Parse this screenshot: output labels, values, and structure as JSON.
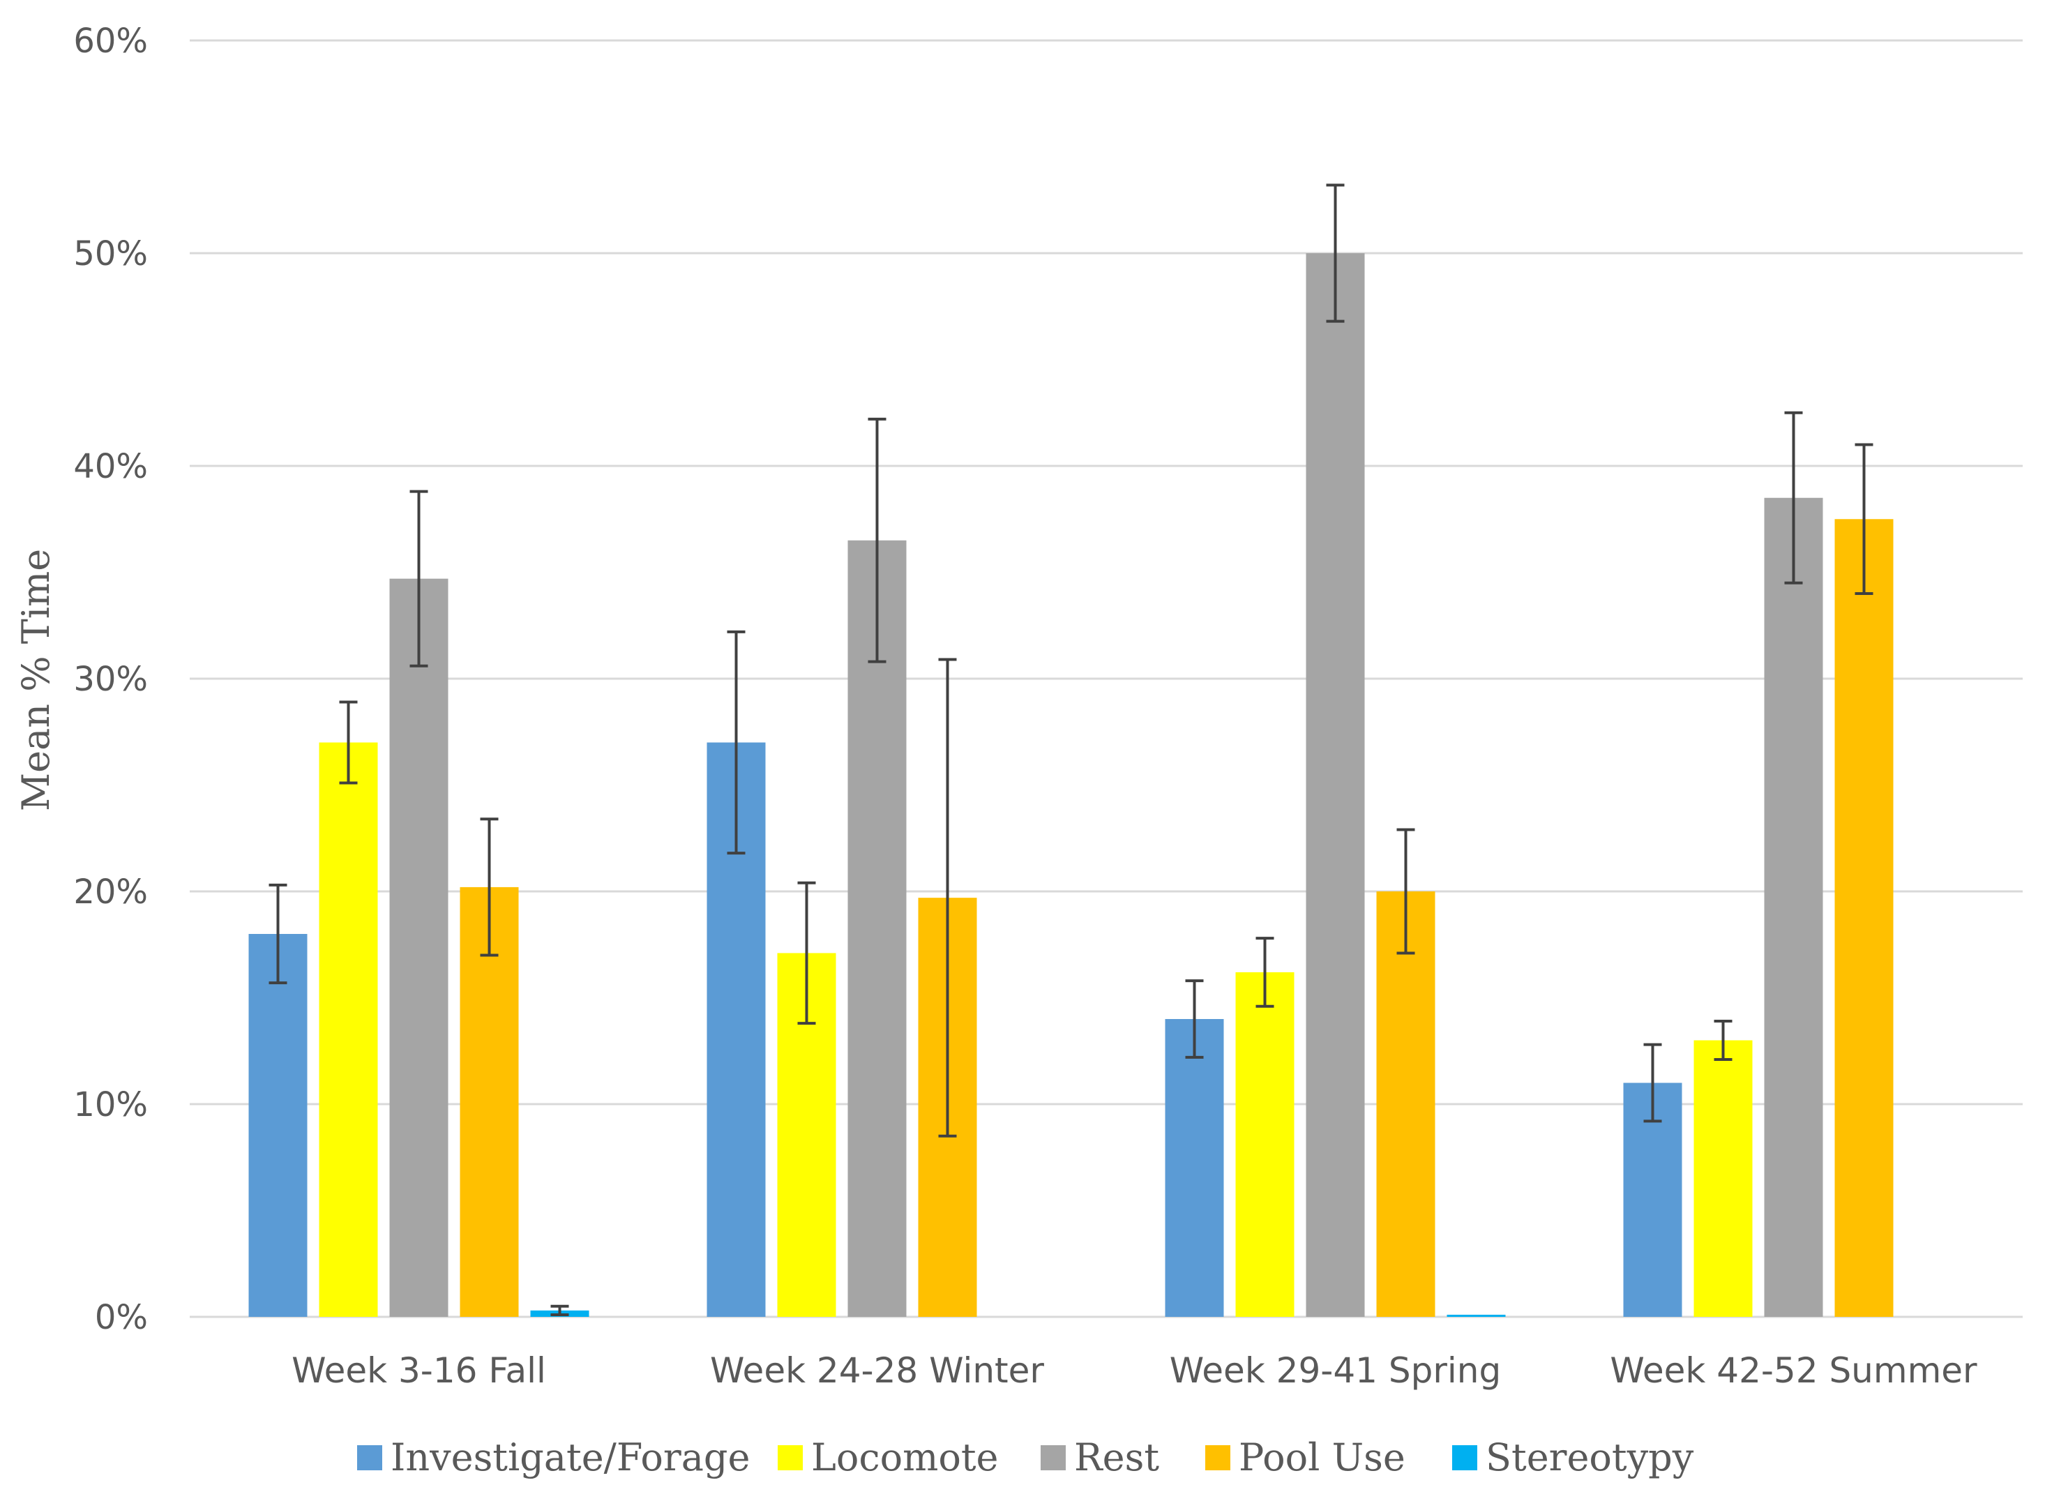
{
  "chart_data": {
    "type": "bar",
    "title": "",
    "xlabel": "",
    "ylabel": "Mean % Time",
    "ylim": [
      0,
      60
    ],
    "y_ticks": [
      "0%",
      "10%",
      "20%",
      "30%",
      "40%",
      "50%",
      "60%"
    ],
    "grid": true,
    "legend_position": "bottom",
    "categories": [
      "Week 3-16 Fall",
      "Week 24-28 Winter",
      "Week 29-41 Spring",
      "Week 42-52 Summer"
    ],
    "series": [
      {
        "name": "Investigate/Forage",
        "color": "#5B9BD5",
        "values": [
          18.0,
          27.0,
          14.0,
          11.0
        ],
        "errors": [
          2.3,
          5.2,
          1.8,
          1.8
        ]
      },
      {
        "name": "Locomote",
        "color": "#FFFF00",
        "values": [
          27.0,
          17.1,
          16.2,
          13.0
        ],
        "errors": [
          1.9,
          3.3,
          1.6,
          0.9
        ]
      },
      {
        "name": "Rest",
        "color": "#A5A5A5",
        "values": [
          34.7,
          36.5,
          50.0,
          38.5
        ],
        "errors": [
          4.1,
          5.7,
          3.2,
          4.0
        ]
      },
      {
        "name": "Pool Use",
        "color": "#FFC000",
        "values": [
          20.2,
          19.7,
          20.0,
          37.5
        ],
        "errors": [
          3.2,
          11.2,
          2.9,
          3.5
        ]
      },
      {
        "name": "Stereotypy",
        "color": "#00B0F0",
        "values": [
          0.3,
          0,
          0.1,
          0
        ],
        "errors": [
          0.2,
          0,
          0,
          0
        ]
      }
    ]
  }
}
